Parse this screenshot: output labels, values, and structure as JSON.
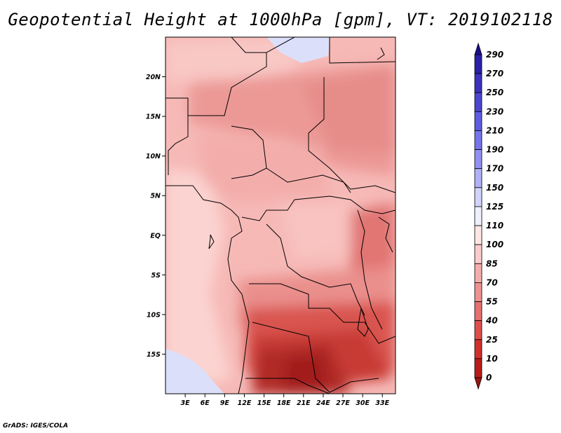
{
  "title": "Geopotential Height at 1000hPa [gpm], VT: 2019102118",
  "credit": "GrADS: IGES/COLA",
  "map": {
    "lon_range": [
      0,
      35
    ],
    "lat_range": [
      -20,
      25
    ],
    "lat_ticks": [
      {
        "value": 20,
        "label": "20N"
      },
      {
        "value": 15,
        "label": "15N"
      },
      {
        "value": 10,
        "label": "10N"
      },
      {
        "value": 5,
        "label": "5N"
      },
      {
        "value": 0,
        "label": "EQ"
      },
      {
        "value": -5,
        "label": "5S"
      },
      {
        "value": -10,
        "label": "10S"
      },
      {
        "value": -15,
        "label": "15S"
      }
    ],
    "lon_ticks": [
      {
        "value": 3,
        "label": "3E"
      },
      {
        "value": 6,
        "label": "6E"
      },
      {
        "value": 9,
        "label": "9E"
      },
      {
        "value": 12,
        "label": "12E"
      },
      {
        "value": 15,
        "label": "15E"
      },
      {
        "value": 18,
        "label": "18E"
      },
      {
        "value": 21,
        "label": "21E"
      },
      {
        "value": 24,
        "label": "24E"
      },
      {
        "value": 27,
        "label": "27E"
      },
      {
        "value": 30,
        "label": "30E"
      },
      {
        "value": 33,
        "label": "33E"
      }
    ]
  },
  "colorbar": {
    "levels": [
      {
        "label": "290",
        "color": "#1a0f8c"
      },
      {
        "label": "270",
        "color": "#2a20a8"
      },
      {
        "label": "250",
        "color": "#3b32be"
      },
      {
        "label": "230",
        "color": "#4b46cf"
      },
      {
        "label": "210",
        "color": "#5e5ce0"
      },
      {
        "label": "190",
        "color": "#7574ea"
      },
      {
        "label": "170",
        "color": "#9190f2"
      },
      {
        "label": "150",
        "color": "#b1b1f7"
      },
      {
        "label": "125",
        "color": "#d2d3fb"
      },
      {
        "label": "110",
        "color": "#eef0fe"
      },
      {
        "label": "100",
        "color": "#fde6e4"
      },
      {
        "label": "85",
        "color": "#fbcccb"
      },
      {
        "label": "70",
        "color": "#f4adab"
      },
      {
        "label": "55",
        "color": "#ec9391"
      },
      {
        "label": "40",
        "color": "#e5716f"
      },
      {
        "label": "25",
        "color": "#de4f4c"
      },
      {
        "label": "10",
        "color": "#cf302c"
      },
      {
        "label": "0",
        "color": "#b81d19"
      },
      {
        "label": "",
        "color": "#991510"
      }
    ]
  }
}
